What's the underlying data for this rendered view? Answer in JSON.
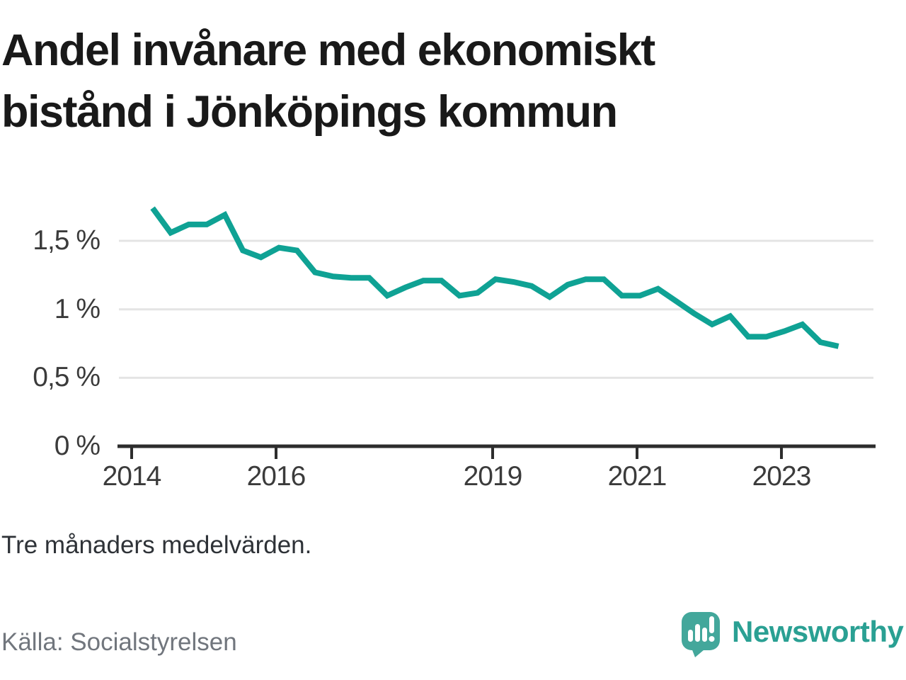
{
  "title": {
    "text": "Andel invånare med ekonomiskt bistånd i Jönköpings kommun",
    "lines": [
      "Andel invånare med ekonomiskt",
      "bistånd i Jönköpings kommun"
    ]
  },
  "note": "Tre månaders medelvärden.",
  "source": "Källa: Socialstyrelsen",
  "logo": {
    "text": "Newsworthy",
    "icon": "speech-bubble-bar-chart-icon"
  },
  "colors": {
    "line": "#0fa294",
    "grid": "#e4e4e4",
    "axis": "#2d2d2d",
    "title_text": "#191919",
    "axis_label": "#3b3b3b",
    "note_text": "#2e3237",
    "source_text": "#71767d",
    "logo_bubble": "#43a79b",
    "logo_text": "#2aa093"
  },
  "chart_data": {
    "type": "line",
    "title": "Andel invånare med ekonomiskt bistånd i Jönköpings kommun",
    "note": "Tre månaders medelvärden.",
    "source": "Källa: Socialstyrelsen",
    "unit": "%",
    "grid": "horizontal",
    "legend": "none",
    "x_unit": "year (quarterly 3-month averages)",
    "x": [
      2014.29,
      2014.54,
      2014.79,
      2015.04,
      2015.29,
      2015.54,
      2015.79,
      2016.04,
      2016.29,
      2016.54,
      2016.79,
      2017.04,
      2017.29,
      2017.54,
      2017.79,
      2018.04,
      2018.29,
      2018.54,
      2018.79,
      2019.04,
      2019.29,
      2019.54,
      2019.79,
      2020.04,
      2020.29,
      2020.54,
      2020.79,
      2021.04,
      2021.29,
      2021.54,
      2021.79,
      2022.04,
      2022.29,
      2022.54,
      2022.79,
      2023.04,
      2023.29,
      2023.54,
      2023.79
    ],
    "series": [
      {
        "name": "Andel invånare med ekonomiskt bistånd (%)",
        "color": "#0fa294",
        "values": [
          1.74,
          1.56,
          1.62,
          1.62,
          1.69,
          1.43,
          1.38,
          1.45,
          1.43,
          1.27,
          1.24,
          1.23,
          1.23,
          1.1,
          1.16,
          1.21,
          1.21,
          1.1,
          1.12,
          1.22,
          1.2,
          1.17,
          1.09,
          1.18,
          1.22,
          1.22,
          1.1,
          1.1,
          1.15,
          1.06,
          0.97,
          0.89,
          0.95,
          0.8,
          0.8,
          0.84,
          0.89,
          0.76,
          0.73
        ]
      }
    ],
    "x_axis": {
      "ticks": [
        {
          "value": 2014,
          "label": "2014"
        },
        {
          "value": 2016,
          "label": "2016"
        },
        {
          "value": 2019,
          "label": "2019"
        },
        {
          "value": 2021,
          "label": "2021"
        },
        {
          "value": 2023,
          "label": "2023"
        }
      ],
      "range": [
        2013.8,
        2024.3
      ]
    },
    "y_axis": {
      "ticks": [
        {
          "value": 0,
          "label": "0 %"
        },
        {
          "value": 0.5,
          "label": "0,5 %"
        },
        {
          "value": 1,
          "label": "1 %"
        },
        {
          "value": 1.5,
          "label": "1,5 %"
        }
      ],
      "range": [
        0,
        1.8
      ]
    }
  }
}
